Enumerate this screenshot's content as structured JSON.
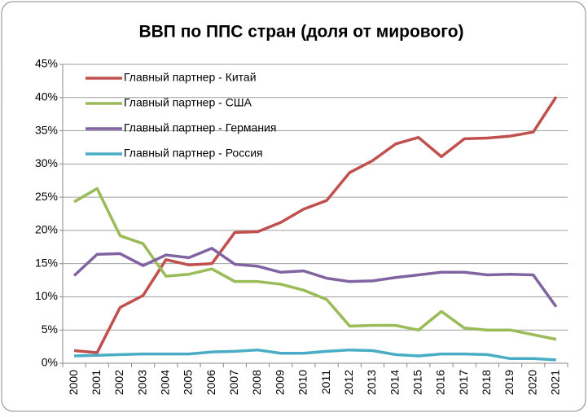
{
  "chart_data": {
    "type": "line",
    "title": "ВВП по ППС стран (доля от мирового)",
    "categories": [
      "2000",
      "2001",
      "2002",
      "2003",
      "2004",
      "2005",
      "2006",
      "2007",
      "2008",
      "2009",
      "2010",
      "2011",
      "2012",
      "2013",
      "2014",
      "2015",
      "2016",
      "2017",
      "2018",
      "2019",
      "2020",
      "2021"
    ],
    "series": [
      {
        "name": "Главный партнер - Китай",
        "color": "#c0504d",
        "values": [
          1.9,
          1.6,
          8.4,
          10.2,
          15.6,
          14.8,
          15.0,
          19.7,
          19.8,
          21.2,
          23.2,
          24.5,
          28.7,
          30.5,
          33.0,
          34.0,
          31.1,
          33.8,
          33.9,
          34.2,
          34.8,
          40.1
        ]
      },
      {
        "name": "Главный партнер - США",
        "color": "#9bbb59",
        "values": [
          24.3,
          26.3,
          19.2,
          18.0,
          13.1,
          13.4,
          14.2,
          12.3,
          12.3,
          11.9,
          11.0,
          9.6,
          5.6,
          5.7,
          5.7,
          5.0,
          7.8,
          5.3,
          5.0,
          5.0,
          4.3,
          3.6
        ]
      },
      {
        "name": "Главный партнер - Германия",
        "color": "#8064a2",
        "values": [
          13.2,
          16.4,
          16.5,
          14.7,
          16.3,
          15.9,
          17.3,
          14.9,
          14.6,
          13.7,
          13.9,
          12.8,
          12.3,
          12.4,
          12.9,
          13.3,
          13.7,
          13.7,
          13.3,
          13.4,
          13.3,
          8.5
        ]
      },
      {
        "name": "Главный партнер - Россия",
        "color": "#4bacc6",
        "values": [
          1.1,
          1.2,
          1.3,
          1.4,
          1.4,
          1.4,
          1.7,
          1.8,
          2.0,
          1.5,
          1.5,
          1.8,
          2.0,
          1.9,
          1.3,
          1.1,
          1.4,
          1.4,
          1.3,
          0.7,
          0.7,
          0.5
        ]
      }
    ],
    "ylim": [
      0,
      45
    ],
    "yticks": [
      {
        "value": 0,
        "label": "0%"
      },
      {
        "value": 5,
        "label": "5%"
      },
      {
        "value": 10,
        "label": "10%"
      },
      {
        "value": 15,
        "label": "15%"
      },
      {
        "value": 20,
        "label": "20%"
      },
      {
        "value": 25,
        "label": "25%"
      },
      {
        "value": 30,
        "label": "30%"
      },
      {
        "value": 35,
        "label": "35%"
      },
      {
        "value": 40,
        "label": "40%"
      },
      {
        "value": 45,
        "label": "45%"
      }
    ],
    "grid": true,
    "legend": "upper left"
  }
}
